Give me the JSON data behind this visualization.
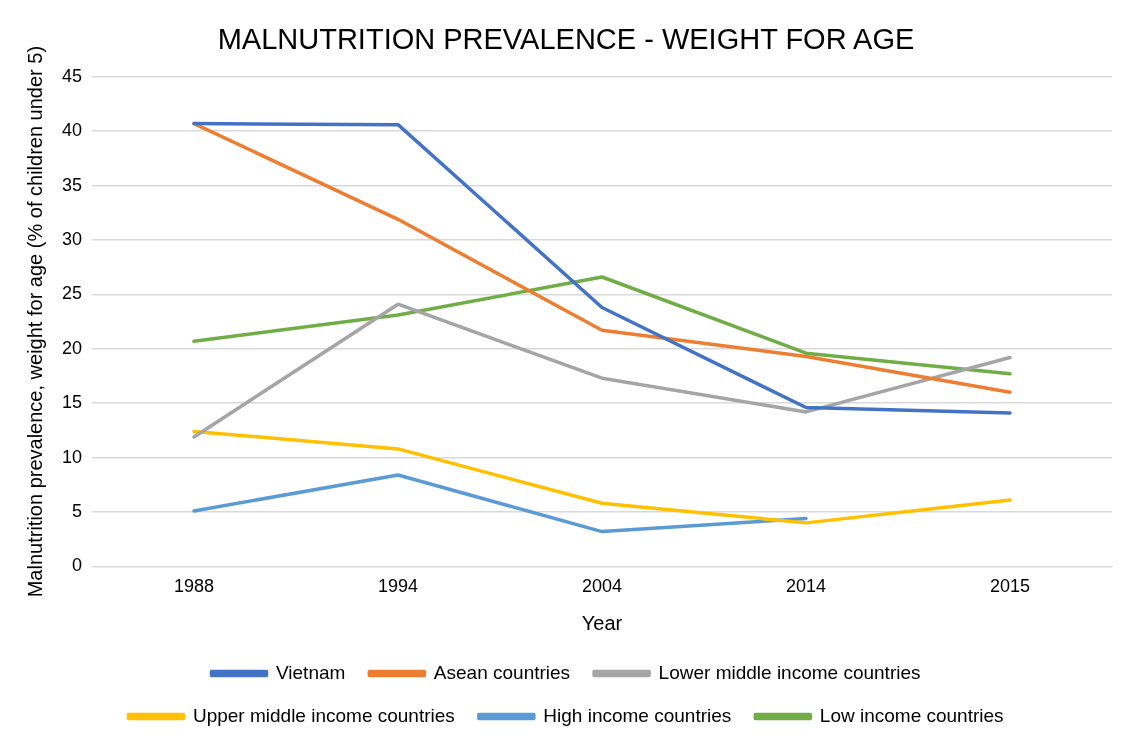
{
  "chart_data": {
    "type": "line",
    "title": "MALNUTRITION PREVALENCE - WEIGHT FOR AGE",
    "xlabel": "Year",
    "ylabel": "Malnutrition prevalence, weight for age (% of children under 5)",
    "categories": [
      "1988",
      "1994",
      "2004",
      "2014",
      "2015"
    ],
    "ylim": [
      0,
      45
    ],
    "yticks": [
      0,
      5,
      10,
      15,
      20,
      25,
      30,
      35,
      40,
      45
    ],
    "grid": "y",
    "legend": "bottom",
    "marker": "none",
    "line_style": "solid",
    "series": [
      {
        "name": "Vietnam",
        "color": "#4472c4",
        "values": [
          40.7,
          40.6,
          23.8,
          14.6,
          14.1
        ]
      },
      {
        "name": "Asean countries",
        "color": "#ed7d31",
        "values": [
          40.7,
          31.9,
          21.7,
          19.3,
          16.0
        ]
      },
      {
        "name": "Lower middle income countries",
        "color": "#a5a5a5",
        "values": [
          11.9,
          24.1,
          17.3,
          14.2,
          19.2
        ]
      },
      {
        "name": "Upper middle income countries",
        "color": "#ffc000",
        "values": [
          12.4,
          10.8,
          5.8,
          4.0,
          6.1
        ]
      },
      {
        "name": "High income countries",
        "color": "#5b9bd5",
        "values": [
          5.1,
          8.4,
          3.2,
          4.4,
          null
        ]
      },
      {
        "name": "Low income countries",
        "color": "#70ad47",
        "values": [
          20.7,
          23.1,
          26.6,
          19.6,
          17.7
        ]
      }
    ]
  }
}
